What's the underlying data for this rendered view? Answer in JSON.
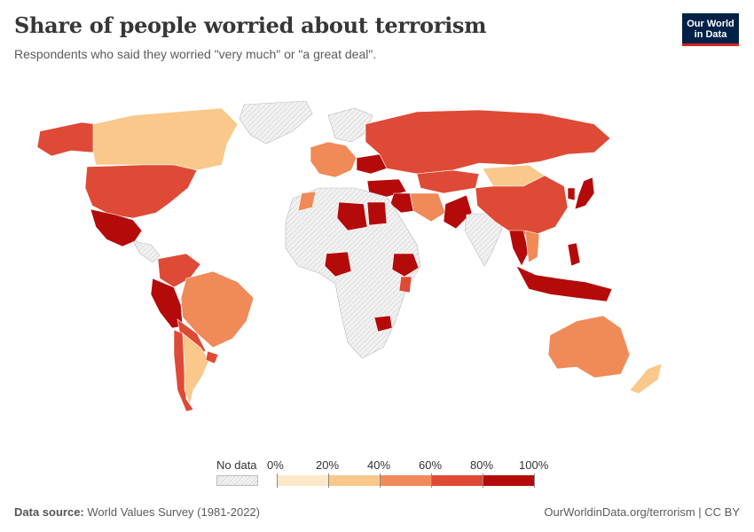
{
  "header": {
    "title": "Share of people worried about terrorism",
    "subtitle": "Respondents who said they worried \"very much\" or \"a great deal\"."
  },
  "logo": {
    "line1": "Our World",
    "line2": "in Data"
  },
  "legend": {
    "no_data_label": "No data",
    "ticks": [
      "0%",
      "20%",
      "40%",
      "60%",
      "80%",
      "100%"
    ],
    "bins": [
      {
        "range": "0-20%",
        "color": "#fde8c8"
      },
      {
        "range": "20-40%",
        "color": "#f9c88a"
      },
      {
        "range": "40-60%",
        "color": "#f08a58"
      },
      {
        "range": "60-80%",
        "color": "#de4a35"
      },
      {
        "range": "80-100%",
        "color": "#b50a0a"
      }
    ],
    "no_data_color": "#e6e6e6"
  },
  "footer": {
    "source_label": "Data source:",
    "source_text": "World Values Survey (1981-2022)",
    "credit": "OurWorldinData.org/terrorism | CC BY"
  }
}
